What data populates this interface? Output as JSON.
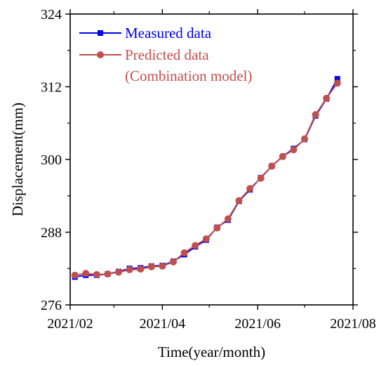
{
  "chart_data": {
    "type": "line",
    "xlabel": "Time(year/month)",
    "ylabel": "Displacement(mm)",
    "xlim": [
      "2021-02-01",
      "2021-08-01"
    ],
    "ylim": [
      276,
      324
    ],
    "x_ticks": [
      "2021/02",
      "2021/04",
      "2021/06",
      "2021/08"
    ],
    "y_ticks": [
      276,
      288,
      300,
      312,
      324
    ],
    "legend_position": "top-left",
    "x": [
      "2021-02-04",
      "2021-02-11",
      "2021-02-18",
      "2021-02-25",
      "2021-03-04",
      "2021-03-11",
      "2021-03-18",
      "2021-03-25",
      "2021-04-01",
      "2021-04-08",
      "2021-04-15",
      "2021-04-22",
      "2021-04-29",
      "2021-05-06",
      "2021-05-13",
      "2021-05-20",
      "2021-05-27",
      "2021-06-03",
      "2021-06-10",
      "2021-06-17",
      "2021-06-24",
      "2021-07-01",
      "2021-07-08",
      "2021-07-15",
      "2021-07-22"
    ],
    "series": [
      {
        "name": "Measured data",
        "color": "#0000ee",
        "marker": "square",
        "values": [
          280.6,
          280.9,
          280.9,
          281.1,
          281.5,
          282.0,
          282.1,
          282.4,
          282.5,
          283.2,
          284.3,
          285.6,
          286.7,
          288.8,
          290.0,
          293.1,
          295.0,
          297.0,
          298.9,
          300.5,
          301.8,
          303.3,
          307.2,
          310.0,
          313.3
        ]
      },
      {
        "name": "Predicted data",
        "name_line2": "(Combination model)",
        "color": "#c0504d",
        "marker": "circle",
        "values": [
          280.9,
          281.2,
          281.0,
          281.1,
          281.4,
          281.8,
          281.9,
          282.3,
          282.4,
          283.1,
          284.6,
          285.8,
          286.9,
          288.7,
          290.2,
          293.2,
          295.2,
          296.9,
          298.9,
          300.5,
          301.6,
          303.4,
          307.4,
          310.1,
          312.6
        ]
      }
    ],
    "grid": false
  },
  "colors": {
    "axis": "#000000"
  }
}
